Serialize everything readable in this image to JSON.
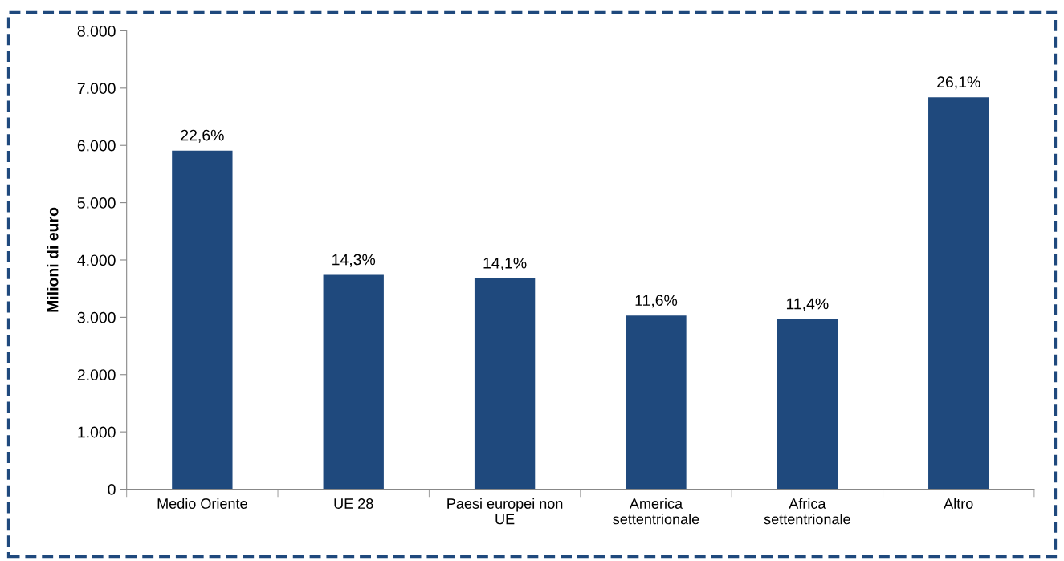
{
  "chart_data": {
    "type": "bar",
    "ylabel": "Milioni di euro",
    "categories": [
      "Medio Oriente",
      "UE 28",
      "Paesi europei non UE",
      "America settentrionale",
      "Africa settentrionale",
      "Altro"
    ],
    "values": [
      5910,
      3740,
      3680,
      3030,
      2970,
      6840
    ],
    "annotations": [
      {
        "text": "22,6%",
        "x": "Medio Oriente",
        "y": 5910
      },
      {
        "text": "14,3%",
        "x": "UE 28",
        "y": 3740
      },
      {
        "text": "14,1%",
        "x": "Paesi europei non UE",
        "y": 3680
      },
      {
        "text": "11,6%",
        "x": "America settentrionale",
        "y": 3030
      },
      {
        "text": "11,4%",
        "x": "Africa settentrionale",
        "y": 2970
      },
      {
        "text": "26,1%",
        "x": "Altro",
        "y": 6840
      }
    ],
    "color": "#1f497d",
    "ylim": [
      0,
      8000
    ],
    "yticks": [
      0,
      {
        "value": 1000,
        "label": "1.000"
      },
      {
        "value": 2000,
        "label": "2.000"
      },
      {
        "value": 3000,
        "label": "3.000"
      },
      {
        "value": 4000,
        "label": "4.000"
      },
      {
        "value": 5000,
        "label": "5.000"
      },
      {
        "value": 6000,
        "label": "6.000"
      },
      {
        "value": 7000,
        "label": "7.000"
      },
      {
        "value": 8000,
        "label": "8.000"
      }
    ],
    "grid": false,
    "legend": false
  }
}
